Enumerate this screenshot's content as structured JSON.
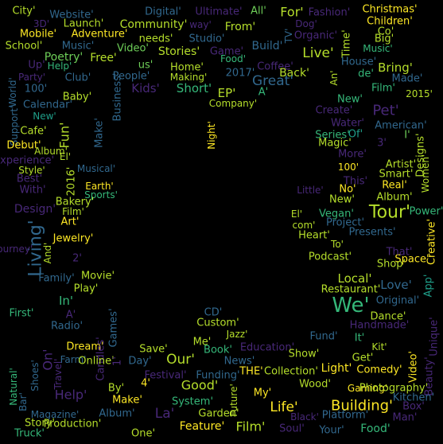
{
  "palette": {
    "background": "#000000",
    "yellow": "#fde725",
    "lime": "#b5de2b",
    "green": "#6ece58",
    "teal_green": "#35b779",
    "teal": "#1f9e89",
    "blue_teal": "#26828e",
    "steel_blue": "#31688e",
    "indigo": "#3e4989",
    "purple": "#482878",
    "deep_purple": "#440154"
  },
  "words": [
    {
      "text": "City'",
      "color": "#b5de2b"
    },
    {
      "text": "Website'",
      "color": "#31688e"
    },
    {
      "text": "Digital'",
      "color": "#31688e"
    },
    {
      "text": "Ultimate'",
      "color": "#482878"
    },
    {
      "text": "All'",
      "color": "#6ece58"
    },
    {
      "text": "For'",
      "color": "#b5de2b"
    },
    {
      "text": "Fashion'",
      "color": "#482878"
    },
    {
      "text": "Christmas'",
      "color": "#fde725"
    },
    {
      "text": "Children'",
      "color": "#fde725"
    },
    {
      "text": "3D'",
      "color": "#482878"
    },
    {
      "text": "Launch'",
      "color": "#b5de2b"
    },
    {
      "text": "Community'",
      "color": "#b5de2b"
    },
    {
      "text": "way'",
      "color": "#482878"
    },
    {
      "text": "From'",
      "color": "#b5de2b"
    },
    {
      "text": "TV'",
      "color": "#31688e"
    },
    {
      "text": "Dog'",
      "color": "#482878"
    },
    {
      "text": "Co'",
      "color": "#b5de2b"
    },
    {
      "text": "Mobile'",
      "color": "#fde725"
    },
    {
      "text": "Adventure'",
      "color": "#fde725"
    },
    {
      "text": "needs'",
      "color": "#b5de2b"
    },
    {
      "text": "Studio'",
      "color": "#31688e"
    },
    {
      "text": "Organic'",
      "color": "#482878"
    },
    {
      "text": "Time'",
      "color": "#b5de2b"
    },
    {
      "text": "Big'",
      "color": "#b5de2b"
    },
    {
      "text": "School'",
      "color": "#b5de2b"
    },
    {
      "text": "Music'",
      "color": "#31688e"
    },
    {
      "text": "Video'",
      "color": "#6ece58"
    },
    {
      "text": "Stories'",
      "color": "#b5de2b"
    },
    {
      "text": "Game'",
      "color": "#482878"
    },
    {
      "text": "Build'",
      "color": "#31688e"
    },
    {
      "text": "Live'",
      "color": "#b5de2b"
    },
    {
      "text": "Music'",
      "color": "#35b779"
    },
    {
      "text": "Poetry'",
      "color": "#6ece58"
    },
    {
      "text": "Free'",
      "color": "#b5de2b"
    },
    {
      "text": "Food'",
      "color": "#35b779"
    },
    {
      "text": "House'",
      "color": "#31688e"
    },
    {
      "text": "Up'",
      "color": "#482878"
    },
    {
      "text": "Help'",
      "color": "#35b779"
    },
    {
      "text": "us'",
      "color": "#6ece58"
    },
    {
      "text": "Home'",
      "color": "#b5de2b"
    },
    {
      "text": "Coffee'",
      "color": "#482878"
    },
    {
      "text": "Bring'",
      "color": "#b5de2b"
    },
    {
      "text": "de'",
      "color": "#35b779"
    },
    {
      "text": "Party'",
      "color": "#482878"
    },
    {
      "text": "Club'",
      "color": "#31688e"
    },
    {
      "text": "People'",
      "color": "#31688e"
    },
    {
      "text": "Making'",
      "color": "#b5de2b"
    },
    {
      "text": "2017'",
      "color": "#31688e"
    },
    {
      "text": "Back'",
      "color": "#b5de2b"
    },
    {
      "text": "An'",
      "color": "#b5de2b"
    },
    {
      "text": "Made'",
      "color": "#31688e"
    },
    {
      "text": "Great'",
      "color": "#31688e"
    },
    {
      "text": "World'",
      "color": "#31688e"
    },
    {
      "text": "100'",
      "color": "#31688e"
    },
    {
      "text": "Kids'",
      "color": "#482878"
    },
    {
      "text": "Short'",
      "color": "#35b779"
    },
    {
      "text": "Film'",
      "color": "#35b779"
    },
    {
      "text": "2015'",
      "color": "#b5de2b"
    },
    {
      "text": "Baby'",
      "color": "#b5de2b"
    },
    {
      "text": "Business'",
      "color": "#31688e"
    },
    {
      "text": "EP'",
      "color": "#b5de2b"
    },
    {
      "text": "A'",
      "color": "#35b779"
    },
    {
      "text": "New'",
      "color": "#35b779"
    },
    {
      "text": "Company'",
      "color": "#b5de2b"
    },
    {
      "text": "Calendar'",
      "color": "#31688e"
    },
    {
      "text": "Pet'",
      "color": "#482878"
    },
    {
      "text": "Create'",
      "color": "#482878"
    },
    {
      "text": "New'",
      "color": "#1f9e89"
    },
    {
      "text": "Night'",
      "color": "#fde725"
    },
    {
      "text": "Water'",
      "color": "#482878"
    },
    {
      "text": "American'",
      "color": "#31688e"
    },
    {
      "text": "Support'",
      "color": "#31688e"
    },
    {
      "text": "Cafe'",
      "color": "#b5de2b"
    },
    {
      "text": "Make'",
      "color": "#31688e"
    },
    {
      "text": "Fun'",
      "color": "#b5de2b"
    },
    {
      "text": "Series'",
      "color": "#35b779"
    },
    {
      "text": "Of'",
      "color": "#1f9e89"
    },
    {
      "text": "I'",
      "color": "#6ece58"
    },
    {
      "text": "Debut'",
      "color": "#fde725"
    },
    {
      "text": "Album'",
      "color": "#b5de2b"
    },
    {
      "text": "Magic'",
      "color": "#b5de2b"
    },
    {
      "text": "3'",
      "color": "#482878"
    },
    {
      "text": "More'",
      "color": "#482878"
    },
    {
      "text": "Designs'",
      "color": "#b5de2b"
    },
    {
      "text": "Experience'",
      "color": "#482878"
    },
    {
      "text": "El'",
      "color": "#b5de2b"
    },
    {
      "text": "Artist'",
      "color": "#b5de2b"
    },
    {
      "text": "100'",
      "color": "#fde725"
    },
    {
      "text": "Smart'",
      "color": "#b5de2b"
    },
    {
      "text": "Women'",
      "color": "#b5de2b"
    },
    {
      "text": "Style'",
      "color": "#b5de2b"
    },
    {
      "text": "Musical'",
      "color": "#31688e"
    },
    {
      "text": "Best'",
      "color": "#482878"
    },
    {
      "text": "2016'",
      "color": "#b5de2b"
    },
    {
      "text": "Earth'",
      "color": "#fde725"
    },
    {
      "text": "This'",
      "color": "#482878"
    },
    {
      "text": "Real'",
      "color": "#fde725"
    },
    {
      "text": "With'",
      "color": "#482878"
    },
    {
      "text": "Sports'",
      "color": "#35b779"
    },
    {
      "text": "Little'",
      "color": "#482878"
    },
    {
      "text": "No'",
      "color": "#fde725"
    },
    {
      "text": "New'",
      "color": "#b5de2b"
    },
    {
      "text": "Album'",
      "color": "#b5de2b"
    },
    {
      "text": "Design'",
      "color": "#482878"
    },
    {
      "text": "Bakery'",
      "color": "#b5de2b"
    },
    {
      "text": "Film'",
      "color": "#b5de2b"
    },
    {
      "text": "Tour'",
      "color": "#b5de2b"
    },
    {
      "text": "Power'",
      "color": "#35b779"
    },
    {
      "text": "Art'",
      "color": "#fde725"
    },
    {
      "text": "El'",
      "color": "#b5de2b"
    },
    {
      "text": "Vegan'",
      "color": "#35b779"
    },
    {
      "text": "Living'",
      "color": "#31688e"
    },
    {
      "text": "com'",
      "color": "#b5de2b"
    },
    {
      "text": "Project'",
      "color": "#31688e"
    },
    {
      "text": "Heart'",
      "color": "#b5de2b"
    },
    {
      "text": "Presents'",
      "color": "#31688e"
    },
    {
      "text": "Creative'",
      "color": "#fde725"
    },
    {
      "text": "Jewelry'",
      "color": "#fde725"
    },
    {
      "text": "To'",
      "color": "#b5de2b"
    },
    {
      "text": "Space'",
      "color": "#fde725"
    },
    {
      "text": "Journey'",
      "color": "#482878"
    },
    {
      "text": "And'",
      "color": "#b5de2b"
    },
    {
      "text": "2'",
      "color": "#482878"
    },
    {
      "text": "That'",
      "color": "#482878"
    },
    {
      "text": "Podcast'",
      "color": "#b5de2b"
    },
    {
      "text": "Shop'",
      "color": "#b5de2b"
    },
    {
      "text": "Family'",
      "color": "#31688e"
    },
    {
      "text": "Movie'",
      "color": "#b5de2b"
    },
    {
      "text": "Local'",
      "color": "#b5de2b"
    },
    {
      "text": "Play'",
      "color": "#b5de2b"
    },
    {
      "text": "Love'",
      "color": "#31688e"
    },
    {
      "text": "Restaurant'",
      "color": "#b5de2b"
    },
    {
      "text": "In'",
      "color": "#35b779"
    },
    {
      "text": "Original'",
      "color": "#31688e"
    },
    {
      "text": "App'",
      "color": "#1f9e89"
    },
    {
      "text": "We'",
      "color": "#35b779"
    },
    {
      "text": "First'",
      "color": "#35b779"
    },
    {
      "text": "A'",
      "color": "#482878"
    },
    {
      "text": "CD'",
      "color": "#31688e"
    },
    {
      "text": "Dance'",
      "color": "#b5de2b"
    },
    {
      "text": "Games'",
      "color": "#31688e"
    },
    {
      "text": "Custom'",
      "color": "#b5de2b"
    },
    {
      "text": "Radio'",
      "color": "#31688e"
    },
    {
      "text": "Jazz'",
      "color": "#b5de2b"
    },
    {
      "text": "Handmade'",
      "color": "#482878"
    },
    {
      "text": "Unique'",
      "color": "#482878"
    },
    {
      "text": "Dream'",
      "color": "#fde725"
    },
    {
      "text": "Candles'",
      "color": "#482878"
    },
    {
      "text": "Fund'",
      "color": "#31688e"
    },
    {
      "text": "It'",
      "color": "#35b779"
    },
    {
      "text": "Kit'",
      "color": "#b5de2b"
    },
    {
      "text": "Me'",
      "color": "#b5de2b"
    },
    {
      "text": "On'",
      "color": "#482878"
    },
    {
      "text": "Save'",
      "color": "#b5de2b"
    },
    {
      "text": "Book'",
      "color": "#35b779"
    },
    {
      "text": "Education'",
      "color": "#482878"
    },
    {
      "text": "Show'",
      "color": "#b5de2b"
    },
    {
      "text": "Get'",
      "color": "#b5de2b"
    },
    {
      "text": "Farm'",
      "color": "#31688e"
    },
    {
      "text": "Online'",
      "color": "#b5de2b"
    },
    {
      "text": "1'",
      "color": "#482878"
    },
    {
      "text": "Day'",
      "color": "#31688e"
    },
    {
      "text": "Our'",
      "color": "#b5de2b"
    },
    {
      "text": "News'",
      "color": "#31688e"
    },
    {
      "text": "THE'",
      "color": "#fde725"
    },
    {
      "text": "Collection'",
      "color": "#b5de2b"
    },
    {
      "text": "Light'",
      "color": "#fde725"
    },
    {
      "text": "Comedy'",
      "color": "#fde725"
    },
    {
      "text": "Video'",
      "color": "#fde725"
    },
    {
      "text": "Beauty'",
      "color": "#482878"
    },
    {
      "text": "Natural'",
      "color": "#35b779"
    },
    {
      "text": "Shoes'",
      "color": "#31688e"
    },
    {
      "text": "Travel'",
      "color": "#482878"
    },
    {
      "text": "Festival'",
      "color": "#482878"
    },
    {
      "text": "Funding'",
      "color": "#31688e"
    },
    {
      "text": "Good'",
      "color": "#b5de2b"
    },
    {
      "text": "4'",
      "color": "#fde725"
    },
    {
      "text": "Help'",
      "color": "#482878"
    },
    {
      "text": "By'",
      "color": "#b5de2b"
    },
    {
      "text": "My'",
      "color": "#fde725"
    },
    {
      "text": "Wood'",
      "color": "#b5de2b"
    },
    {
      "text": "Gaming'",
      "color": "#fde725"
    },
    {
      "text": "Photography'",
      "color": "#b5de2b"
    },
    {
      "text": "Bar'",
      "color": "#31688e"
    },
    {
      "text": "Make'",
      "color": "#fde725"
    },
    {
      "text": "System'",
      "color": "#35b779"
    },
    {
      "text": "Future'",
      "color": "#b5de2b"
    },
    {
      "text": "Kitchen'",
      "color": "#31688e"
    },
    {
      "text": "Box'",
      "color": "#482878"
    },
    {
      "text": "La'",
      "color": "#482878"
    },
    {
      "text": "Garden'",
      "color": "#b5de2b"
    },
    {
      "text": "Life'",
      "color": "#fde725"
    },
    {
      "text": "Building'",
      "color": "#fde725"
    },
    {
      "text": "Magazine'",
      "color": "#31688e"
    },
    {
      "text": "Album'",
      "color": "#31688e"
    },
    {
      "text": "Black'",
      "color": "#482878"
    },
    {
      "text": "Platform'",
      "color": "#31688e"
    },
    {
      "text": "Man'",
      "color": "#482878"
    },
    {
      "text": "Story'",
      "color": "#b5de2b"
    },
    {
      "text": "Production'",
      "color": "#b5de2b"
    },
    {
      "text": "Feature'",
      "color": "#fde725"
    },
    {
      "text": "Film'",
      "color": "#b5de2b"
    },
    {
      "text": "Food'",
      "color": "#35b779"
    },
    {
      "text": "Truck'",
      "color": "#35b779"
    },
    {
      "text": "One'",
      "color": "#b5de2b"
    },
    {
      "text": "Soul'",
      "color": "#482878"
    },
    {
      "text": "Your'",
      "color": "#31688e"
    },
    {
      "text": "Go'",
      "color": "#b5de2b"
    },
    {
      "text": "Inspired'",
      "color": "#b5de2b"
    }
  ]
}
